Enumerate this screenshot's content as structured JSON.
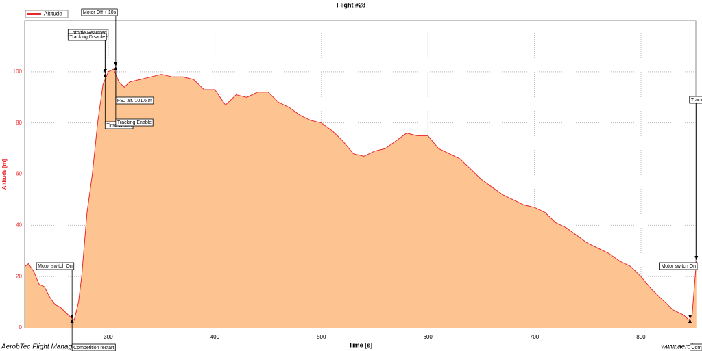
{
  "chart_data": {
    "type": "area",
    "title": "Flight #28",
    "x_label": "Time [s]",
    "y_label": "Altitude [m]",
    "footer_left": "AerobTec Flight Manag",
    "footer_right": "www.aerobte",
    "xlim": [
      221.5,
      851.5
    ],
    "xticks": [
      300,
      400,
      500,
      600,
      700,
      800
    ],
    "ylim": [
      0,
      120
    ],
    "yticks": [
      0,
      20,
      40,
      60,
      80,
      100
    ],
    "grid": true,
    "legend": "top-left",
    "series": [
      {
        "name": "Altitude",
        "color": "#e8262b",
        "fill": "#fdc491",
        "x": [
          222,
          225,
          230,
          235,
          240,
          245,
          250,
          255,
          260,
          265,
          268,
          272,
          275,
          280,
          285,
          290,
          295,
          300,
          305,
          310,
          315,
          320,
          330,
          340,
          350,
          360,
          370,
          380,
          390,
          400,
          410,
          420,
          430,
          440,
          450,
          460,
          470,
          480,
          490,
          500,
          510,
          520,
          530,
          540,
          550,
          560,
          570,
          580,
          590,
          600,
          610,
          620,
          630,
          640,
          650,
          660,
          670,
          680,
          690,
          700,
          710,
          720,
          730,
          740,
          750,
          760,
          770,
          780,
          790,
          800,
          810,
          820,
          830,
          840,
          845,
          848,
          852
        ],
        "values": [
          24,
          25,
          22,
          17,
          16,
          12,
          9,
          8,
          6,
          4,
          3,
          10,
          20,
          45,
          60,
          80,
          95,
          100,
          101,
          96,
          94,
          96,
          97,
          98,
          99,
          98,
          98,
          97,
          93,
          93,
          87,
          91,
          90,
          92,
          92,
          88,
          86,
          83,
          81,
          80,
          77,
          73,
          68,
          67,
          69,
          70,
          73,
          76,
          75,
          75,
          70,
          68,
          66,
          62,
          58,
          55,
          52,
          50,
          48,
          47,
          45,
          41,
          39,
          36,
          33,
          31,
          29,
          26,
          24,
          20,
          15,
          11,
          7,
          5,
          3,
          5,
          26
        ]
      }
    ],
    "annotations": [
      {
        "text": "Motor switch On",
        "x": 266
      },
      {
        "text": "Competition restart",
        "x": 266
      },
      {
        "text": "Throttle Rearmed",
        "x": 297
      },
      {
        "text": "Tracking Disable",
        "x": 297
      },
      {
        "text": "Motor Off + 10s",
        "x": 307
      },
      {
        "text": "FSJ alt. 101.6 m",
        "x": 307
      },
      {
        "text": "Time switch",
        "x": 297
      },
      {
        "text": "Tracking Enable",
        "x": 307
      },
      {
        "text": "Motor switch On",
        "x": 846
      },
      {
        "text": "Competitio",
        "x": 846
      },
      {
        "text": "Tracking",
        "x": 852
      }
    ]
  }
}
